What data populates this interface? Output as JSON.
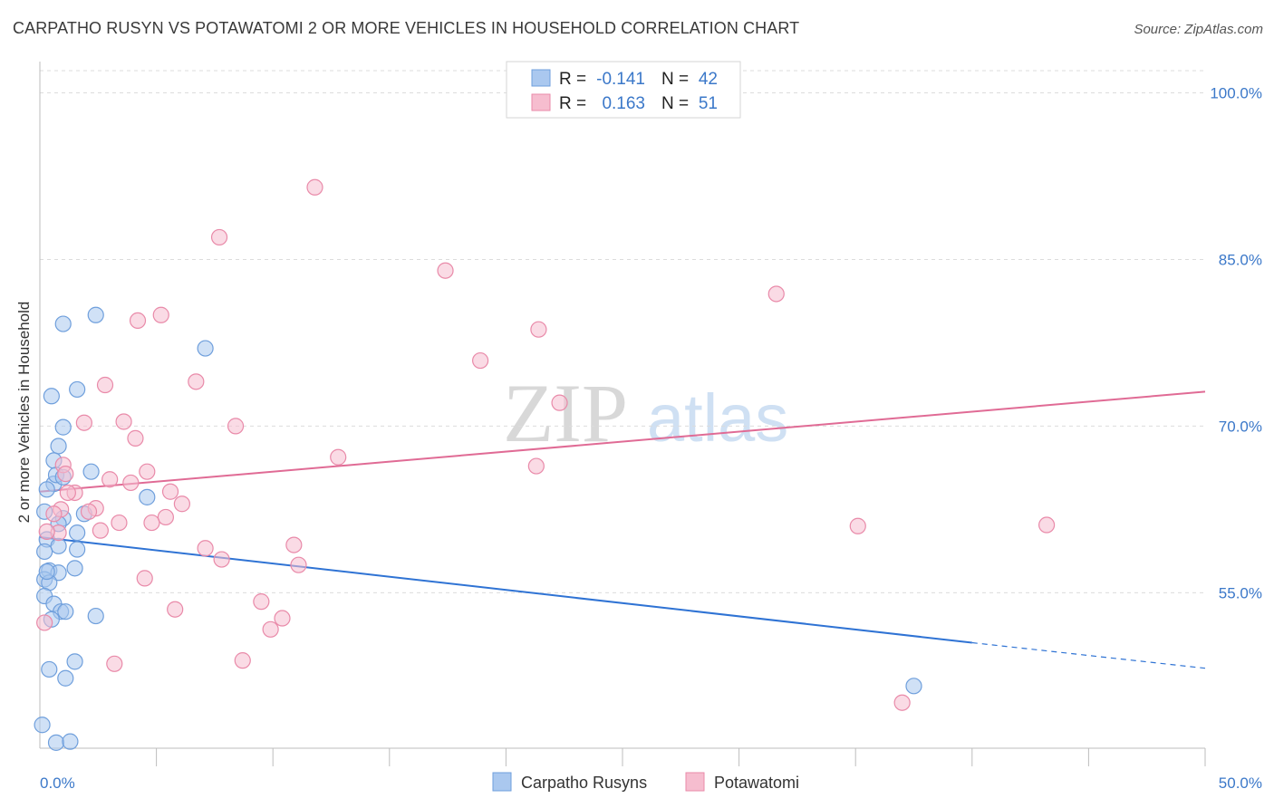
{
  "header": {
    "title": "CARPATHO RUSYN VS POTAWATOMI 2 OR MORE VEHICLES IN HOUSEHOLD CORRELATION CHART",
    "source": "Source: ZipAtlas.com"
  },
  "watermark": {
    "zip": "ZIP",
    "atlas": "atlas"
  },
  "colors": {
    "blue_fill": "#aac8ef",
    "blue_stroke": "#6f9fdc",
    "blue_line": "#2f73d4",
    "pink_fill": "#f6bdcf",
    "pink_stroke": "#e98aa9",
    "pink_line": "#e06b95",
    "tick_label": "#3b78c9"
  },
  "chart_data": {
    "type": "scatter",
    "title": "CARPATHO RUSYN VS POTAWATOMI 2 OR MORE VEHICLES IN HOUSEHOLD CORRELATION CHART",
    "xlabel": "",
    "ylabel": "2 or more Vehicles in Household",
    "xlim": [
      0,
      50
    ],
    "ylim": [
      41,
      102
    ],
    "x_tick_labels": [
      {
        "value": 0,
        "label": "0.0%"
      },
      {
        "value": 50,
        "label": "50.0%"
      }
    ],
    "x_minor_ticks": [
      5,
      10,
      15,
      20,
      25,
      30,
      35,
      40,
      45
    ],
    "y_ticks": [
      {
        "value": 100,
        "label": "100.0%"
      },
      {
        "value": 85,
        "label": "85.0%"
      },
      {
        "value": 70,
        "label": "70.0%"
      },
      {
        "value": 55,
        "label": "55.0%"
      }
    ],
    "legend_stats": [
      {
        "r_label": "R = ",
        "r_value": "-0.141",
        "n_label": "N = ",
        "n_value": "42"
      },
      {
        "r_label": "R = ",
        "r_value": "0.163",
        "n_label": "N = ",
        "n_value": "51"
      }
    ],
    "series": [
      {
        "name": "Carpatho Rusyns",
        "color": "blue",
        "trend": {
          "x0": 0,
          "y0": 60.0,
          "x1": 40.0,
          "y1": 50.5,
          "dash_to_x": 50,
          "dash_to_y": 48.2
        },
        "points": [
          [
            2.4,
            80.0
          ],
          [
            1.0,
            79.2
          ],
          [
            7.1,
            77.0
          ],
          [
            1.6,
            73.3
          ],
          [
            0.5,
            72.7
          ],
          [
            1.0,
            69.9
          ],
          [
            0.8,
            68.2
          ],
          [
            0.6,
            66.9
          ],
          [
            0.6,
            64.8
          ],
          [
            2.2,
            65.9
          ],
          [
            0.7,
            65.6
          ],
          [
            1.0,
            65.4
          ],
          [
            0.3,
            64.3
          ],
          [
            4.6,
            63.6
          ],
          [
            0.2,
            62.3
          ],
          [
            1.9,
            62.1
          ],
          [
            1.0,
            61.7
          ],
          [
            0.8,
            61.2
          ],
          [
            1.6,
            60.4
          ],
          [
            0.3,
            59.8
          ],
          [
            0.8,
            59.2
          ],
          [
            1.6,
            58.9
          ],
          [
            0.2,
            58.7
          ],
          [
            1.5,
            57.2
          ],
          [
            0.4,
            57.0
          ],
          [
            0.8,
            56.8
          ],
          [
            0.2,
            56.2
          ],
          [
            0.4,
            55.9
          ],
          [
            0.2,
            54.7
          ],
          [
            0.6,
            54.0
          ],
          [
            0.9,
            53.3
          ],
          [
            1.1,
            53.3
          ],
          [
            2.4,
            52.9
          ],
          [
            0.5,
            52.6
          ],
          [
            1.5,
            48.8
          ],
          [
            0.4,
            48.1
          ],
          [
            1.1,
            47.3
          ],
          [
            37.5,
            46.6
          ],
          [
            0.1,
            43.1
          ],
          [
            0.7,
            41.5
          ],
          [
            1.3,
            41.6
          ],
          [
            0.3,
            56.9
          ]
        ]
      },
      {
        "name": "Potawatomi",
        "color": "pink",
        "trend": {
          "x0": 0,
          "y0": 64.1,
          "x1": 50,
          "y1": 73.1
        },
        "points": [
          [
            11.8,
            91.5
          ],
          [
            7.7,
            87.0
          ],
          [
            17.4,
            84.0
          ],
          [
            31.6,
            81.9
          ],
          [
            5.2,
            80.0
          ],
          [
            4.2,
            79.5
          ],
          [
            21.4,
            78.7
          ],
          [
            18.9,
            75.9
          ],
          [
            6.7,
            74.0
          ],
          [
            2.8,
            73.7
          ],
          [
            22.3,
            72.1
          ],
          [
            1.9,
            70.3
          ],
          [
            3.6,
            70.4
          ],
          [
            8.4,
            70.0
          ],
          [
            4.1,
            68.9
          ],
          [
            12.8,
            67.2
          ],
          [
            1.0,
            66.5
          ],
          [
            1.1,
            65.7
          ],
          [
            21.3,
            66.4
          ],
          [
            4.6,
            65.9
          ],
          [
            3.0,
            65.2
          ],
          [
            3.9,
            64.9
          ],
          [
            1.5,
            64.0
          ],
          [
            5.6,
            64.1
          ],
          [
            6.1,
            63.0
          ],
          [
            2.4,
            62.6
          ],
          [
            2.1,
            62.3
          ],
          [
            0.9,
            62.5
          ],
          [
            0.6,
            62.1
          ],
          [
            5.4,
            61.8
          ],
          [
            3.4,
            61.3
          ],
          [
            4.8,
            61.3
          ],
          [
            35.1,
            61.0
          ],
          [
            43.2,
            61.1
          ],
          [
            2.6,
            60.6
          ],
          [
            0.8,
            60.4
          ],
          [
            0.3,
            60.5
          ],
          [
            10.9,
            59.3
          ],
          [
            7.1,
            59.0
          ],
          [
            7.8,
            58.0
          ],
          [
            11.1,
            57.5
          ],
          [
            4.5,
            56.3
          ],
          [
            9.5,
            54.2
          ],
          [
            5.8,
            53.5
          ],
          [
            10.4,
            52.7
          ],
          [
            9.9,
            51.7
          ],
          [
            0.2,
            52.3
          ],
          [
            8.7,
            48.9
          ],
          [
            3.2,
            48.6
          ],
          [
            37.0,
            45.1
          ],
          [
            1.2,
            64.0
          ]
        ]
      }
    ],
    "legend_bottom": [
      "Carpatho Rusyns",
      "Potawatomi"
    ]
  }
}
